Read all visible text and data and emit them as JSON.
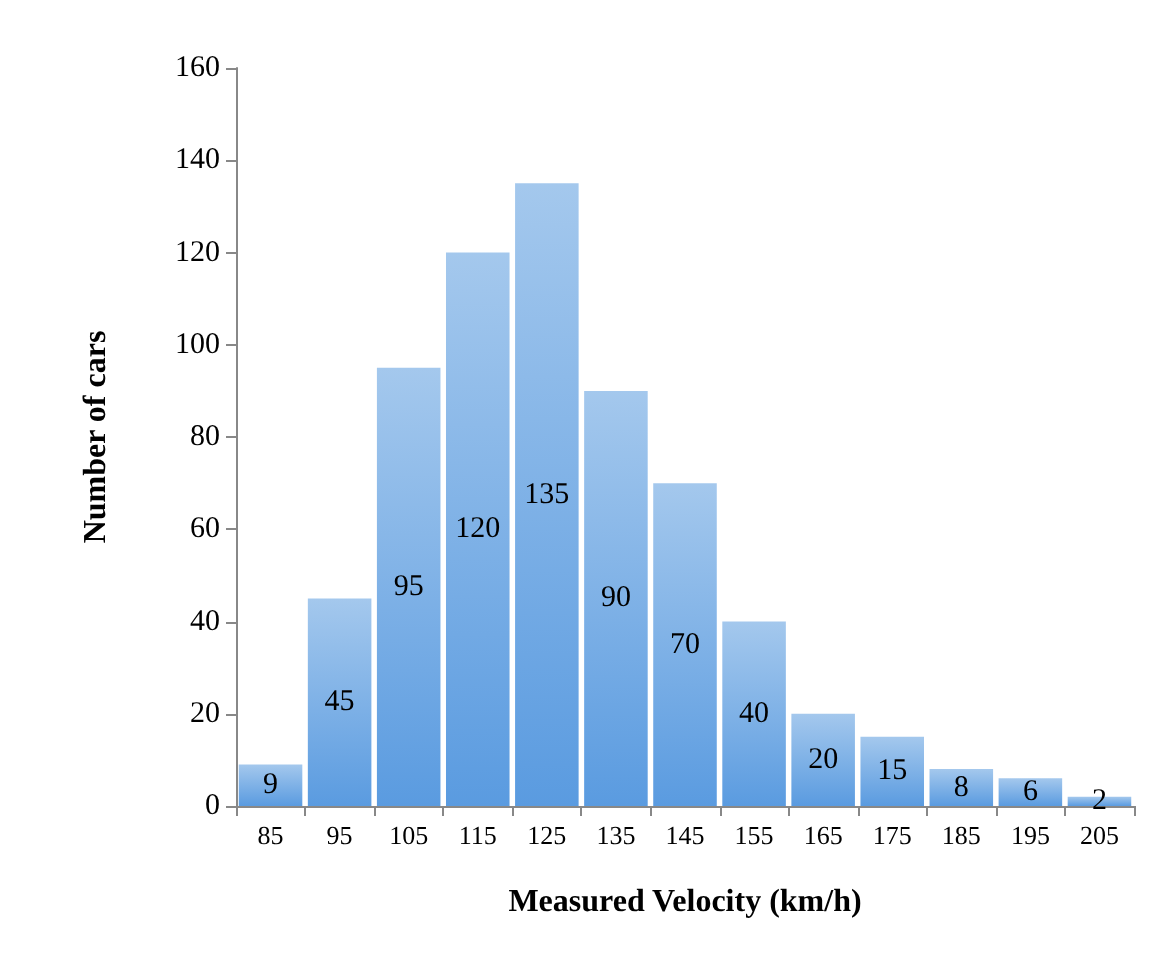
{
  "chart_data": {
    "type": "bar",
    "xlabel": "Measured Velocity (km/h)",
    "ylabel": "Number of cars",
    "categories": [
      "85",
      "95",
      "105",
      "115",
      "125",
      "135",
      "145",
      "155",
      "165",
      "175",
      "185",
      "195",
      "205"
    ],
    "values": [
      9,
      45,
      95,
      120,
      135,
      90,
      70,
      40,
      20,
      15,
      8,
      6,
      2
    ],
    "color": "#5a9be0",
    "ylim": [
      0,
      160
    ],
    "yticks": [
      0,
      20,
      40,
      60,
      80,
      100,
      120,
      140,
      160
    ],
    "grid": false,
    "data_labels": true
  }
}
